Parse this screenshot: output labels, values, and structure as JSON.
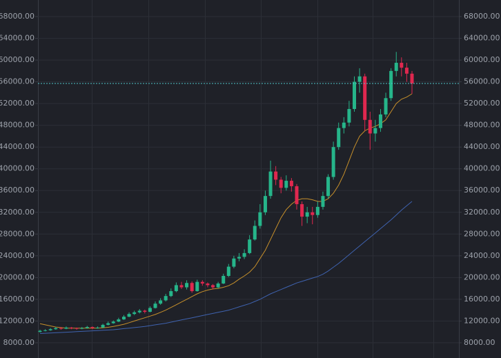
{
  "chart_data": {
    "type": "candlestick",
    "up_color": "#26b58a",
    "down_color": "#e0284f",
    "ylim": [
      5200,
      71050
    ],
    "yticks": [
      {
        "value": 8000,
        "label": "8000.00"
      },
      {
        "value": 12000,
        "label": "12000.00"
      },
      {
        "value": 16000,
        "label": "16000.00"
      },
      {
        "value": 20000,
        "label": "20000.00"
      },
      {
        "value": 24000,
        "label": "24000.00"
      },
      {
        "value": 28000,
        "label": "28000.00"
      },
      {
        "value": 32000,
        "label": "32000.00"
      },
      {
        "value": 36000,
        "label": "36000.00"
      },
      {
        "value": 40000,
        "label": "40000.00"
      },
      {
        "value": 44000,
        "label": "44000.00"
      },
      {
        "value": 48000,
        "label": "48000.00"
      },
      {
        "value": 52000,
        "label": "52000.00"
      },
      {
        "value": 56000,
        "label": "56000.00"
      },
      {
        "value": 60000,
        "label": "60000.00"
      },
      {
        "value": 64000,
        "label": "64000.00"
      },
      {
        "value": 68000,
        "label": "68000.00"
      }
    ],
    "grid": true,
    "price_line": {
      "value": 55700,
      "color": "#4fc3c9"
    },
    "open": [
      10000,
      10200,
      10300,
      10500,
      10700,
      10600,
      10800,
      10700,
      10600,
      10700,
      10900,
      10700,
      10800,
      11300,
      11600,
      11900,
      12300,
      12800,
      13300,
      13600,
      13900,
      13700,
      14400,
      15200,
      15800,
      16600,
      17500,
      18600,
      18200,
      19000,
      17500,
      19200,
      18900,
      18600,
      18200,
      18900,
      20300,
      22000,
      23500,
      23800,
      24500,
      27000,
      29500,
      32000,
      35000,
      39500,
      38000,
      36500,
      37800,
      36800,
      33500,
      31200,
      32000,
      31500,
      33000,
      35000,
      38500,
      44000,
      47500,
      48500,
      51000,
      56000,
      57000,
      49000,
      46500,
      47500,
      50000,
      53000,
      58000,
      59500,
      58600,
      57500
    ],
    "high": [
      10400,
      10500,
      10700,
      10900,
      10900,
      11000,
      10900,
      10800,
      10900,
      11100,
      11000,
      11000,
      11500,
      11900,
      12100,
      12600,
      13100,
      13600,
      13900,
      14200,
      14100,
      14700,
      15600,
      16200,
      17000,
      18000,
      19100,
      19200,
      19500,
      19300,
      19600,
      19500,
      19100,
      18800,
      19200,
      20700,
      22500,
      24000,
      24500,
      25200,
      27800,
      30500,
      33500,
      36000,
      41500,
      40500,
      38500,
      38800,
      38300,
      37200,
      34000,
      33000,
      33000,
      34000,
      35800,
      39000,
      45000,
      48500,
      49500,
      52500,
      57000,
      58500,
      57500,
      50500,
      49000,
      51000,
      54000,
      58500,
      61500,
      60500,
      59500,
      58000
    ],
    "low": [
      9900,
      10100,
      10200,
      10400,
      10400,
      10500,
      10500,
      10400,
      10500,
      10600,
      10500,
      10600,
      10700,
      11200,
      11500,
      11800,
      12200,
      12700,
      13100,
      13400,
      13400,
      13600,
      14300,
      15000,
      15600,
      16400,
      17300,
      17900,
      17800,
      17200,
      17400,
      18500,
      18200,
      17800,
      18000,
      18800,
      20100,
      21700,
      23000,
      23400,
      24300,
      26800,
      29000,
      31500,
      34500,
      37000,
      35500,
      36000,
      35800,
      32500,
      29500,
      30000,
      29800,
      31000,
      32500,
      34500,
      38000,
      43500,
      46500,
      47800,
      50500,
      54000,
      47000,
      43500,
      45000,
      46800,
      49500,
      52500,
      57000,
      57000,
      56000,
      53800
    ],
    "close": [
      10200,
      10300,
      10500,
      10700,
      10600,
      10800,
      10700,
      10600,
      10700,
      10900,
      10700,
      10800,
      11300,
      11600,
      11900,
      12300,
      12800,
      13300,
      13600,
      13900,
      13700,
      14400,
      15200,
      15800,
      16600,
      17500,
      18600,
      18200,
      19000,
      17500,
      19200,
      18900,
      18600,
      18200,
      18900,
      20300,
      22000,
      23500,
      23800,
      24500,
      27000,
      29500,
      32000,
      35000,
      39500,
      38000,
      36500,
      37800,
      36800,
      33500,
      31200,
      32000,
      31500,
      33000,
      35000,
      38500,
      44000,
      47500,
      48500,
      51000,
      56000,
      57000,
      49000,
      46500,
      47500,
      50000,
      53000,
      58000,
      59500,
      58600,
      57500,
      55700
    ],
    "lines": [
      {
        "color": "#c7902b",
        "values": [
          11500,
          11300,
          11100,
          10900,
          10800,
          10700,
          10700,
          10700,
          10700,
          10700,
          10700,
          10700,
          10750,
          10850,
          11000,
          11200,
          11400,
          11700,
          12000,
          12300,
          12600,
          12900,
          13200,
          13600,
          14000,
          14500,
          15000,
          15500,
          16000,
          16500,
          17000,
          17400,
          17700,
          17900,
          18000,
          18200,
          18500,
          19000,
          19700,
          20300,
          21000,
          22000,
          23500,
          25000,
          27000,
          29000,
          31000,
          32500,
          33500,
          34200,
          34500,
          34500,
          34300,
          34000,
          34000,
          34500,
          35500,
          37000,
          39000,
          41500,
          44000,
          46000,
          47000,
          47500,
          47800,
          48300,
          49000,
          50500,
          52000,
          52800,
          53200,
          53800
        ]
      },
      {
        "color": "#3f63b0",
        "values": [
          9700,
          9750,
          9800,
          9850,
          9900,
          9950,
          10000,
          10050,
          10100,
          10150,
          10200,
          10250,
          10300,
          10350,
          10400,
          10500,
          10600,
          10700,
          10800,
          10900,
          11000,
          11150,
          11300,
          11450,
          11600,
          11800,
          12000,
          12200,
          12400,
          12600,
          12800,
          13000,
          13200,
          13400,
          13600,
          13800,
          14000,
          14300,
          14600,
          14900,
          15200,
          15600,
          16000,
          16500,
          17000,
          17400,
          17800,
          18200,
          18600,
          19000,
          19300,
          19600,
          19900,
          20200,
          20600,
          21200,
          21900,
          22600,
          23400,
          24200,
          25000,
          25800,
          26600,
          27400,
          28200,
          29000,
          29800,
          30600,
          31500,
          32400,
          33200,
          34000
        ]
      }
    ]
  }
}
